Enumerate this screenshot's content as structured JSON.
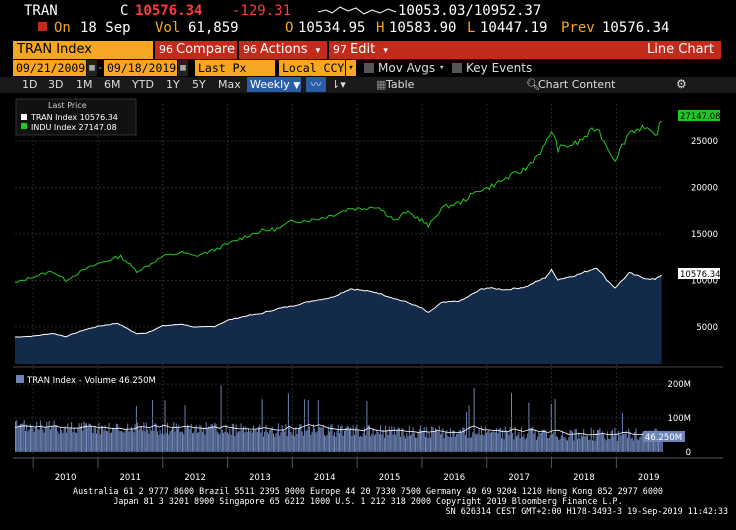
{
  "quote": {
    "ticker": "TRAN",
    "flag": "C",
    "last": "10576.34",
    "change": "-129.31",
    "range": "10053.03/10952.37",
    "on_label": "On",
    "date": "18 Sep",
    "vol_label": "Vol",
    "volume": "61,859",
    "open_label": "O",
    "open": "10534.95",
    "high_label": "H",
    "high": "10583.90",
    "low_label": "L",
    "low": "10447.19",
    "prev_label": "Prev",
    "prev": "10576.34"
  },
  "menubar": {
    "security": "TRAN Index",
    "compare_num": "96",
    "compare": "Compare",
    "actions_num": "96",
    "actions": "Actions",
    "edit_num": "97",
    "edit": "Edit",
    "chart_type": "Line Chart"
  },
  "params": {
    "start_date": "09/21/2009",
    "end_date": "09/18/2019",
    "field": "Last Px",
    "currency": "Local CCY",
    "mov_avgs": "Mov Avgs",
    "key_events": "Key Events"
  },
  "toolbar": {
    "periods": [
      "1D",
      "3D",
      "1M",
      "6M",
      "YTD",
      "1Y",
      "5Y",
      "Max"
    ],
    "frequency": "Weekly",
    "table": "Table",
    "chart_content": "Chart Content"
  },
  "colors": {
    "amber": "#f5a623",
    "menu_red": "#c22b1c",
    "indu_green": "#22c722",
    "tran_fill": "#142a4a",
    "volume_fill": "#6e85b8"
  },
  "chart_data": {
    "type": "line",
    "legend_title": "Last Price",
    "series": [
      {
        "name": "TRAN Index",
        "last_label": "10576.34",
        "color": "#ffffff"
      },
      {
        "name": "INDU Index",
        "last_label": "27147.08",
        "color": "#22c722"
      }
    ],
    "x_years": [
      "2010",
      "2011",
      "2012",
      "2013",
      "2014",
      "2015",
      "2016",
      "2017",
      "2018",
      "2019"
    ],
    "y_ticks": [
      "5000",
      "10000",
      "15000",
      "20000",
      "25000"
    ],
    "ylim": [
      1000,
      29000
    ],
    "tran_points": [
      [
        2009.72,
        3900
      ],
      [
        2010.0,
        4000
      ],
      [
        2010.3,
        4300
      ],
      [
        2010.5,
        3950
      ],
      [
        2010.8,
        4700
      ],
      [
        2011.0,
        5050
      ],
      [
        2011.3,
        5400
      ],
      [
        2011.6,
        4250
      ],
      [
        2011.75,
        4350
      ],
      [
        2012.0,
        5100
      ],
      [
        2012.3,
        5300
      ],
      [
        2012.5,
        4950
      ],
      [
        2012.8,
        5050
      ],
      [
        2013.0,
        5700
      ],
      [
        2013.3,
        6200
      ],
      [
        2013.5,
        6400
      ],
      [
        2013.8,
        7000
      ],
      [
        2014.0,
        7250
      ],
      [
        2014.3,
        7800
      ],
      [
        2014.6,
        8150
      ],
      [
        2014.9,
        9100
      ],
      [
        2015.0,
        9000
      ],
      [
        2015.3,
        8700
      ],
      [
        2015.6,
        8000
      ],
      [
        2015.75,
        7700
      ],
      [
        2016.0,
        7000
      ],
      [
        2016.1,
        6500
      ],
      [
        2016.3,
        7600
      ],
      [
        2016.6,
        7800
      ],
      [
        2016.9,
        9000
      ],
      [
        2017.0,
        9200
      ],
      [
        2017.3,
        9000
      ],
      [
        2017.6,
        9300
      ],
      [
        2017.9,
        10300
      ],
      [
        2018.0,
        11100
      ],
      [
        2018.1,
        10100
      ],
      [
        2018.4,
        10600
      ],
      [
        2018.7,
        11400
      ],
      [
        2018.85,
        10100
      ],
      [
        2018.98,
        9200
      ],
      [
        2019.2,
        10800
      ],
      [
        2019.4,
        10300
      ],
      [
        2019.6,
        10100
      ],
      [
        2019.7,
        10600
      ]
    ],
    "indu_points": [
      [
        2009.72,
        9700
      ],
      [
        2010.0,
        10400
      ],
      [
        2010.3,
        11000
      ],
      [
        2010.5,
        10000
      ],
      [
        2010.8,
        11200
      ],
      [
        2011.0,
        11800
      ],
      [
        2011.35,
        12600
      ],
      [
        2011.6,
        11000
      ],
      [
        2011.75,
        11500
      ],
      [
        2012.0,
        12600
      ],
      [
        2012.3,
        13000
      ],
      [
        2012.5,
        12600
      ],
      [
        2012.8,
        13300
      ],
      [
        2013.0,
        13900
      ],
      [
        2013.3,
        14800
      ],
      [
        2013.5,
        15300
      ],
      [
        2013.8,
        15600
      ],
      [
        2014.0,
        16400
      ],
      [
        2014.3,
        16500
      ],
      [
        2014.6,
        17000
      ],
      [
        2014.9,
        17800
      ],
      [
        2015.0,
        17700
      ],
      [
        2015.3,
        18000
      ],
      [
        2015.6,
        16400
      ],
      [
        2015.75,
        17400
      ],
      [
        2016.0,
        16500
      ],
      [
        2016.1,
        15800
      ],
      [
        2016.3,
        17800
      ],
      [
        2016.6,
        18400
      ],
      [
        2016.9,
        19800
      ],
      [
        2017.0,
        19900
      ],
      [
        2017.3,
        21000
      ],
      [
        2017.6,
        22000
      ],
      [
        2017.9,
        24500
      ],
      [
        2018.0,
        26200
      ],
      [
        2018.1,
        24200
      ],
      [
        2018.4,
        24800
      ],
      [
        2018.7,
        26500
      ],
      [
        2018.85,
        24500
      ],
      [
        2018.98,
        23000
      ],
      [
        2019.2,
        26000
      ],
      [
        2019.4,
        26500
      ],
      [
        2019.6,
        25500
      ],
      [
        2019.7,
        27147
      ]
    ],
    "volume_panel": {
      "label": "TRAN Index - Volume 46.250M",
      "last_label": "46.250M",
      "y_ticks": [
        "200M",
        "100M",
        "0"
      ],
      "ylim": [
        0,
        230
      ]
    }
  },
  "footer": {
    "line1": "Australia 61 2 9777 8600 Brazil 5511 2395 9000 Europe 44 20 7330 7500 Germany 49 69 9204 1210 Hong Kong 852 2977 6000",
    "line2": "Japan 81 3 3201 8900        Singapore 65 6212 1000        U.S. 1 212 318 2000             Copyright 2019 Bloomberg Finance L.P.",
    "line3": "SN 626314 CEST GMT+2:00 H178-3493-3 19-Sep-2019 11:42:33"
  }
}
